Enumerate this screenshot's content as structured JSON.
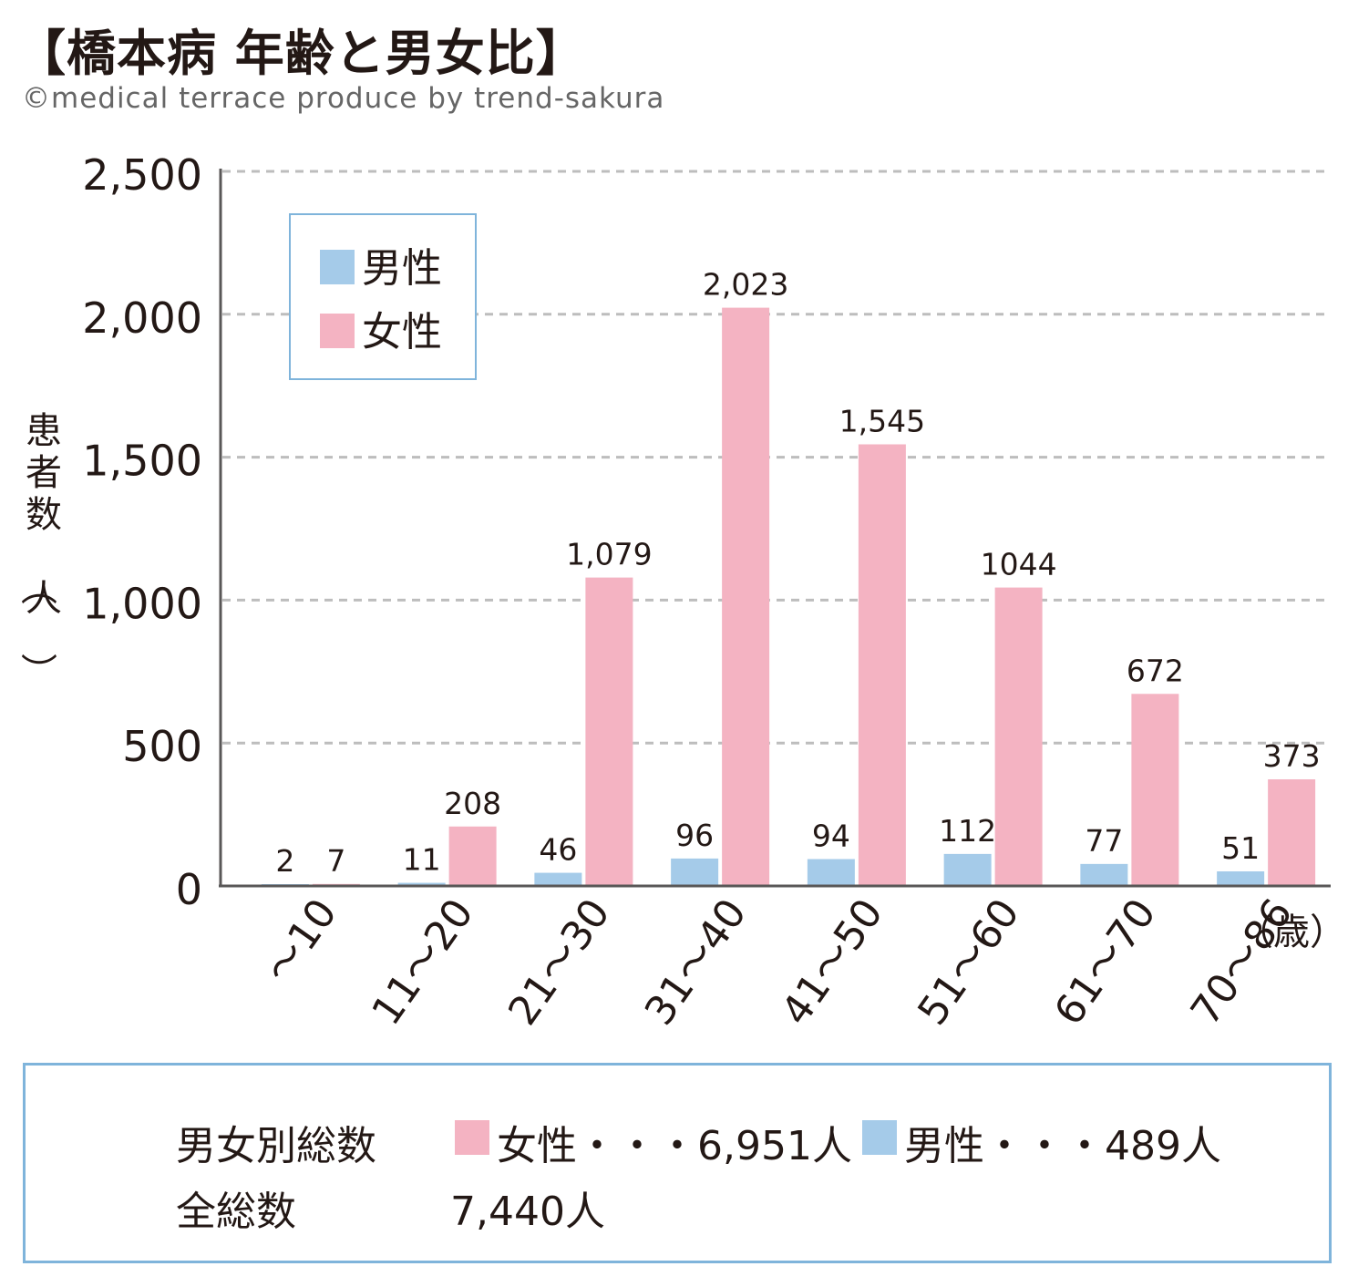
{
  "title": "【橋本病 年齢と男女比】",
  "credit": "©medical terrace produce by trend-sakura",
  "colors": {
    "male": "#a5cbe9",
    "female": "#f4b3c2",
    "grid": "#bdbdbd",
    "axis": "#595757",
    "legend_border": "#7fb4db"
  },
  "chart_data": {
    "type": "bar",
    "title": "【橋本病 年齢と男女比】",
    "ylabel": "患者数（人）",
    "xlabel_unit": "（歳）",
    "ylim": [
      0,
      2500
    ],
    "yticks": [
      "0",
      "500",
      "1,000",
      "1,500",
      "2,000",
      "2,500"
    ],
    "ytick_values": [
      0,
      500,
      1000,
      1500,
      2000,
      2500
    ],
    "grid": true,
    "legend_position": "top-left",
    "categories": [
      "～10",
      "11～20",
      "21～30",
      "31～40",
      "41～50",
      "51～60",
      "61～70",
      "70～86"
    ],
    "series": [
      {
        "name": "男性",
        "values": [
          2,
          11,
          46,
          96,
          94,
          112,
          77,
          51
        ],
        "labels": [
          "2",
          "11",
          "46",
          "96",
          "94",
          "112",
          "77",
          "51"
        ]
      },
      {
        "name": "女性",
        "values": [
          7,
          208,
          1079,
          2023,
          1545,
          1044,
          672,
          373
        ],
        "labels": [
          "7",
          "208",
          "1,079",
          "2,023",
          "1,545",
          "1044",
          "672",
          "373"
        ]
      }
    ]
  },
  "summary": {
    "label_by_sex": "男女別総数",
    "female": "女性・・・6,951人",
    "male": "男性・・・489人",
    "label_total": "全総数",
    "total": "7,440人"
  }
}
